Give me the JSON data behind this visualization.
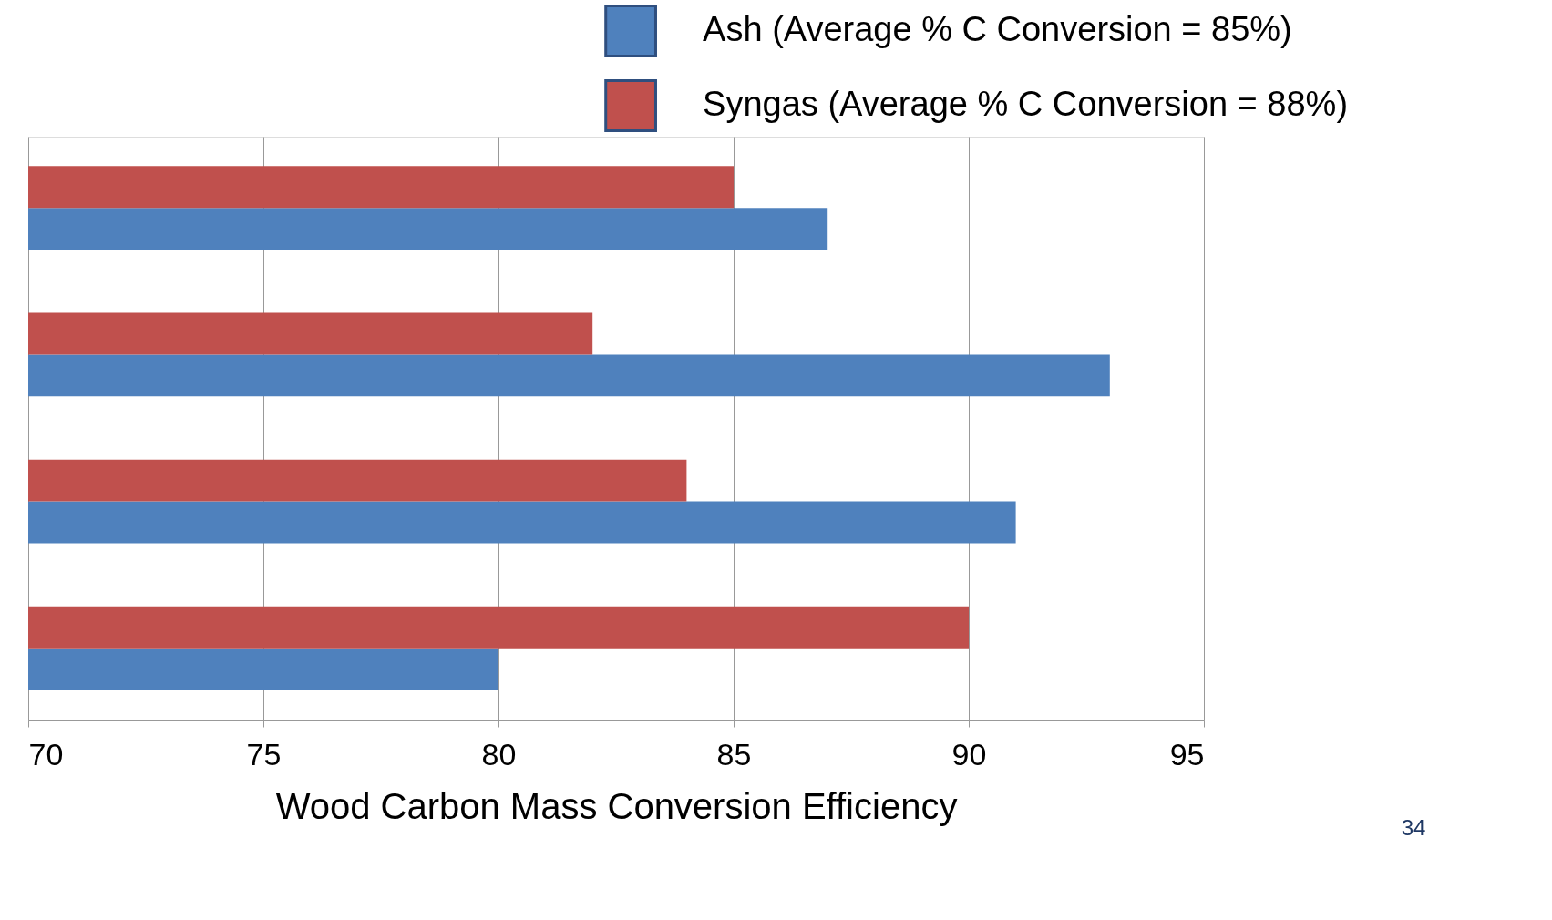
{
  "chart_data": {
    "type": "bar",
    "orientation": "horizontal",
    "xlabel": "Wood Carbon Mass Conversion Efficiency",
    "categories": [
      null,
      null,
      null,
      null
    ],
    "series": [
      {
        "name": "Ash (Average % C Conversion = 85%)",
        "color": "#4f81bd",
        "values": [
          87,
          93,
          91,
          80
        ]
      },
      {
        "name": "Syngas (Average % C Conversion = 88%)",
        "color": "#c0504d",
        "values": [
          85,
          82,
          84,
          90
        ]
      }
    ],
    "xlim": [
      70,
      95
    ],
    "xticks": [
      70,
      75,
      80,
      85,
      90,
      95
    ],
    "grid": "x",
    "legend": "top right",
    "annotations": [
      "34"
    ]
  }
}
